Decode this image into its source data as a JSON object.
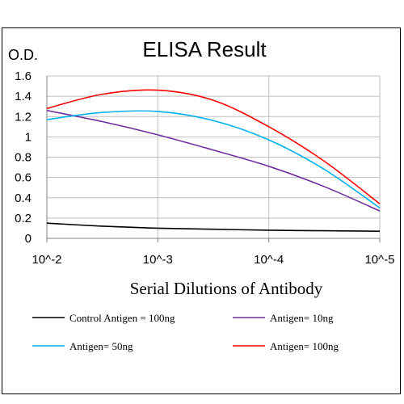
{
  "chart_data": {
    "type": "line",
    "title": "ELISA Result",
    "ylabel": "O.D.",
    "xlabel": "Serial Dilutions of Antibody",
    "x_categories": [
      "10^-2",
      "10^-3",
      "10^-4",
      "10^-5"
    ],
    "x": [
      0,
      0.5,
      1,
      1.5,
      2,
      2.5,
      3
    ],
    "ylim": [
      0,
      1.6
    ],
    "yticks": [
      "0",
      "0.2",
      "0.4",
      "0.6",
      "0.8",
      "1",
      "1.2",
      "1.4",
      "1.6"
    ],
    "grid": true,
    "legend_placement": "bottom",
    "series": [
      {
        "name": "Control Antigen = 100ng",
        "color": "#000000",
        "values": [
          0.15,
          0.12,
          0.1,
          0.09,
          0.08,
          0.075,
          0.07
        ]
      },
      {
        "name": "Antigen= 10ng",
        "color": "#7030A0",
        "values": [
          1.26,
          1.15,
          1.02,
          0.87,
          0.71,
          0.51,
          0.27
        ]
      },
      {
        "name": "Antigen= 50ng",
        "color": "#00B0F0",
        "values": [
          1.17,
          1.24,
          1.25,
          1.16,
          0.97,
          0.68,
          0.3
        ]
      },
      {
        "name": "Antigen= 100ng",
        "color": "#FF0000",
        "values": [
          1.28,
          1.42,
          1.46,
          1.36,
          1.1,
          0.76,
          0.34
        ]
      }
    ]
  }
}
